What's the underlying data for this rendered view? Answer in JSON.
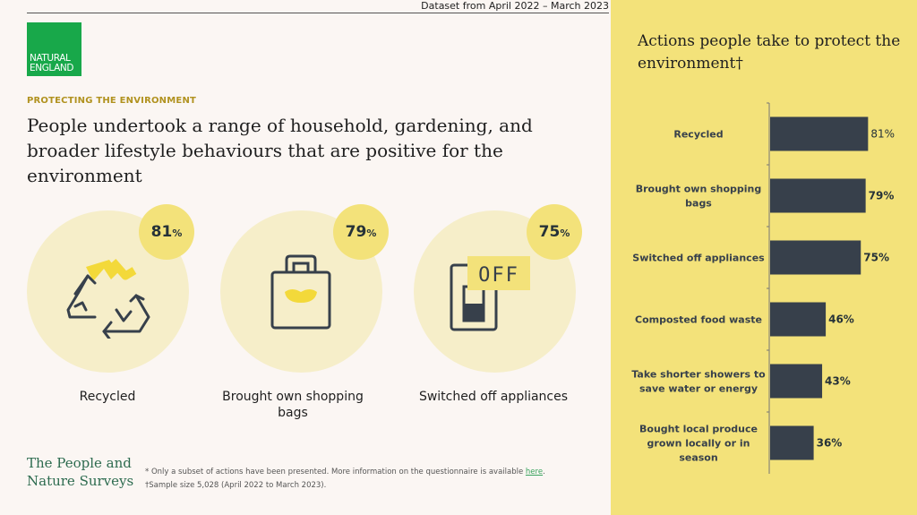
{
  "header": {
    "dataset_note": "Dataset from April 2022 – March 2023"
  },
  "logo": {
    "line1": "NATURAL",
    "line2": "ENGLAND"
  },
  "kicker": "PROTECTING THE ENVIRONMENT",
  "headline": "People undertook a range of household, gardening, and broader lifestyle behaviours that are positive for the environment",
  "highlights": [
    {
      "value": "81",
      "unit": "%",
      "label": "Recycled",
      "icon": "recycle-icon"
    },
    {
      "value": "79",
      "unit": "%",
      "label": "Brought own shopping bags",
      "icon": "shopping-bag-icon"
    },
    {
      "value": "75",
      "unit": "%",
      "label": "Switched off appliances",
      "icon": "switch-off-icon"
    }
  ],
  "survey_name": {
    "line1": "The People and",
    "line2": "Nature Surveys"
  },
  "footnote": {
    "line1_prefix": "* Only a subset of actions have been presented. More information on the questionnaire is available ",
    "line1_link": "here",
    "line1_suffix": ".",
    "line2": "†Sample size 5,028 (April 2022 to March 2023)."
  },
  "colors": {
    "bar": "#37404b",
    "panel": "#f3e27a",
    "accent_green": "#18a84a",
    "kicker": "#b1921f"
  },
  "chart_data": {
    "type": "bar",
    "orientation": "horizontal",
    "title": "Actions people take to protect the environment†",
    "categories": [
      "Recycled",
      "Brought own shopping bags",
      "Switched off appliances",
      "Composted food waste",
      "Take shorter showers to save water or energy",
      "Bought local produce grown locally or in season"
    ],
    "category_lines": [
      [
        "Recycled"
      ],
      [
        "Brought own shopping",
        "bags"
      ],
      [
        "Switched off appliances"
      ],
      [
        "Composted food waste"
      ],
      [
        "Take shorter showers to",
        "save water or energy"
      ],
      [
        "Bought local produce",
        "grown locally or in",
        "season"
      ]
    ],
    "values": [
      81,
      79,
      75,
      46,
      43,
      36
    ],
    "value_labels": [
      "81%",
      "79%",
      "75%",
      "46%",
      "43%",
      "36%"
    ],
    "xlim": [
      0,
      100
    ],
    "grid": false,
    "legend": "none"
  }
}
